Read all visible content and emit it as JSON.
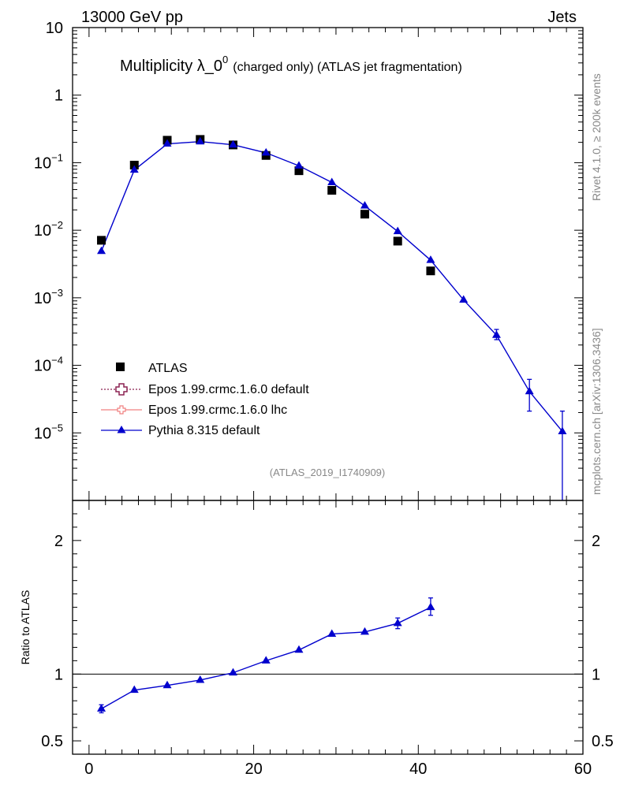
{
  "header": {
    "left": "13000 GeV pp",
    "right": "Jets"
  },
  "side_labels": {
    "top": "Rivet 4.1.0, ≥ 200k events",
    "bottom": "mcplots.cern.ch [arXiv:1306.3436]"
  },
  "chart_data": {
    "type": "scatter",
    "title_main": "Multiplicity λ_0",
    "title_sup": "0",
    "title_tail": "(charged only) (ATLAS jet fragmentation)",
    "analysis_id": "(ATLAS_2019_I1740909)",
    "xlabel": "",
    "xlim": [
      -2,
      60
    ],
    "x_ticks": [
      "0",
      "20",
      "40",
      "60"
    ],
    "top_ylim_log10": [
      -6.0,
      1.0
    ],
    "top_y_ticks": [
      {
        "base": "10",
        "exp": ""
      },
      {
        "base": "1",
        "exp": ""
      },
      {
        "base": "10",
        "exp": "−1"
      },
      {
        "base": "10",
        "exp": "−2"
      },
      {
        "base": "10",
        "exp": "−3"
      },
      {
        "base": "10",
        "exp": "−4"
      },
      {
        "base": "10",
        "exp": "−5"
      }
    ],
    "ratio_ylabel": "Ratio to ATLAS",
    "ratio_ylim": [
      0.4,
      2.3
    ],
    "ratio_ticks": [
      "0.5",
      "1",
      "2"
    ],
    "legend": [
      {
        "name": "ATLAS",
        "marker": "square",
        "color": "#000000"
      },
      {
        "name": "Epos 1.99.crmc.1.6.0 default",
        "marker": "open-cross",
        "color": "#8b2252"
      },
      {
        "name": "Epos 1.99.crmc.1.6.0 lhc",
        "marker": "open-cross",
        "color": "#f08080"
      },
      {
        "name": "Pythia 8.315 default",
        "marker": "triangle",
        "color": "#0000cd"
      }
    ],
    "series": [
      {
        "name": "ATLAS",
        "x": [
          1.5,
          5.5,
          9.5,
          13.5,
          17.5,
          21.5,
          25.5,
          29.5,
          33.5,
          37.5,
          41.5
        ],
        "y": [
          0.0071,
          0.092,
          0.215,
          0.221,
          0.183,
          0.128,
          0.076,
          0.039,
          0.0173,
          0.0069,
          0.0025
        ]
      },
      {
        "name": "Pythia 8.315 default",
        "x": [
          1.5,
          5.5,
          9.5,
          13.5,
          17.5,
          21.5,
          25.5,
          29.5,
          33.5,
          37.5,
          41.5,
          45.5,
          49.5,
          53.5,
          57.5
        ],
        "y": [
          0.0049,
          0.078,
          0.19,
          0.205,
          0.184,
          0.14,
          0.09,
          0.051,
          0.023,
          0.0096,
          0.0036,
          0.00093,
          0.00028,
          4.1e-05,
          1.05e-05
        ],
        "y_low": [
          0.0049,
          0.078,
          0.19,
          0.205,
          0.184,
          0.14,
          0.09,
          0.051,
          0.023,
          0.0096,
          0.0036,
          0.00093,
          0.00024,
          2.1e-05,
          5e-07
        ],
        "y_high": [
          0.0049,
          0.078,
          0.19,
          0.205,
          0.184,
          0.14,
          0.09,
          0.051,
          0.023,
          0.0096,
          0.0036,
          0.00093,
          0.00034,
          6.2e-05,
          2.1e-05
        ],
        "ratio": [
          0.74,
          0.88,
          0.915,
          0.955,
          1.01,
          1.1,
          1.18,
          1.3,
          1.315,
          1.38,
          1.5
        ],
        "ratio_low": [
          0.71,
          0.88,
          0.915,
          0.955,
          1.01,
          1.1,
          1.18,
          1.3,
          1.315,
          1.34,
          1.44
        ],
        "ratio_high": [
          0.77,
          0.88,
          0.915,
          0.955,
          1.01,
          1.1,
          1.18,
          1.3,
          1.315,
          1.42,
          1.57
        ]
      }
    ]
  }
}
